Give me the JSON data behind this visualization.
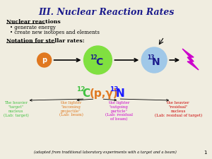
{
  "title": "III. Nuclear Reaction Rates",
  "background_color": "#f0ede0",
  "title_color": "#1a1a8c",
  "section1_header": "Nuclear reactions",
  "section1_bullets": [
    "generate energy",
    "create new isotopes and elements"
  ],
  "section2_header": "Notation for stellar rates:",
  "circle_p_color": "#e07820",
  "circle_p_text": "p",
  "circle_c_color": "#80e040",
  "circle_n_color": "#a0c8e8",
  "lightning_color": "#cc00cc",
  "reaction_color_C": "#40c040",
  "reaction_color_paren": "#e07820",
  "reaction_color_N": "#1a1aff",
  "desc1_text": "The heavier\n\"target\"\nnucleus\n(Lab: target)",
  "desc1_color": "#40c040",
  "desc2_text": "the lighter\n\"incoming\nprojectile\"\n(Lab: beam)",
  "desc2_color": "#e07820",
  "desc3_text": "the lighter\n\"outgoing\nparticle\"\n(Lab: residual\nof beam)",
  "desc3_color": "#cc00cc",
  "desc4_text": "the heavier\n\"residual\"\nnucleus\n(Lab: residual of target)",
  "desc4_color": "#cc0000",
  "footer": "(adapted from traditional laboratory experiments with a target and a beam)",
  "page_num": "1"
}
